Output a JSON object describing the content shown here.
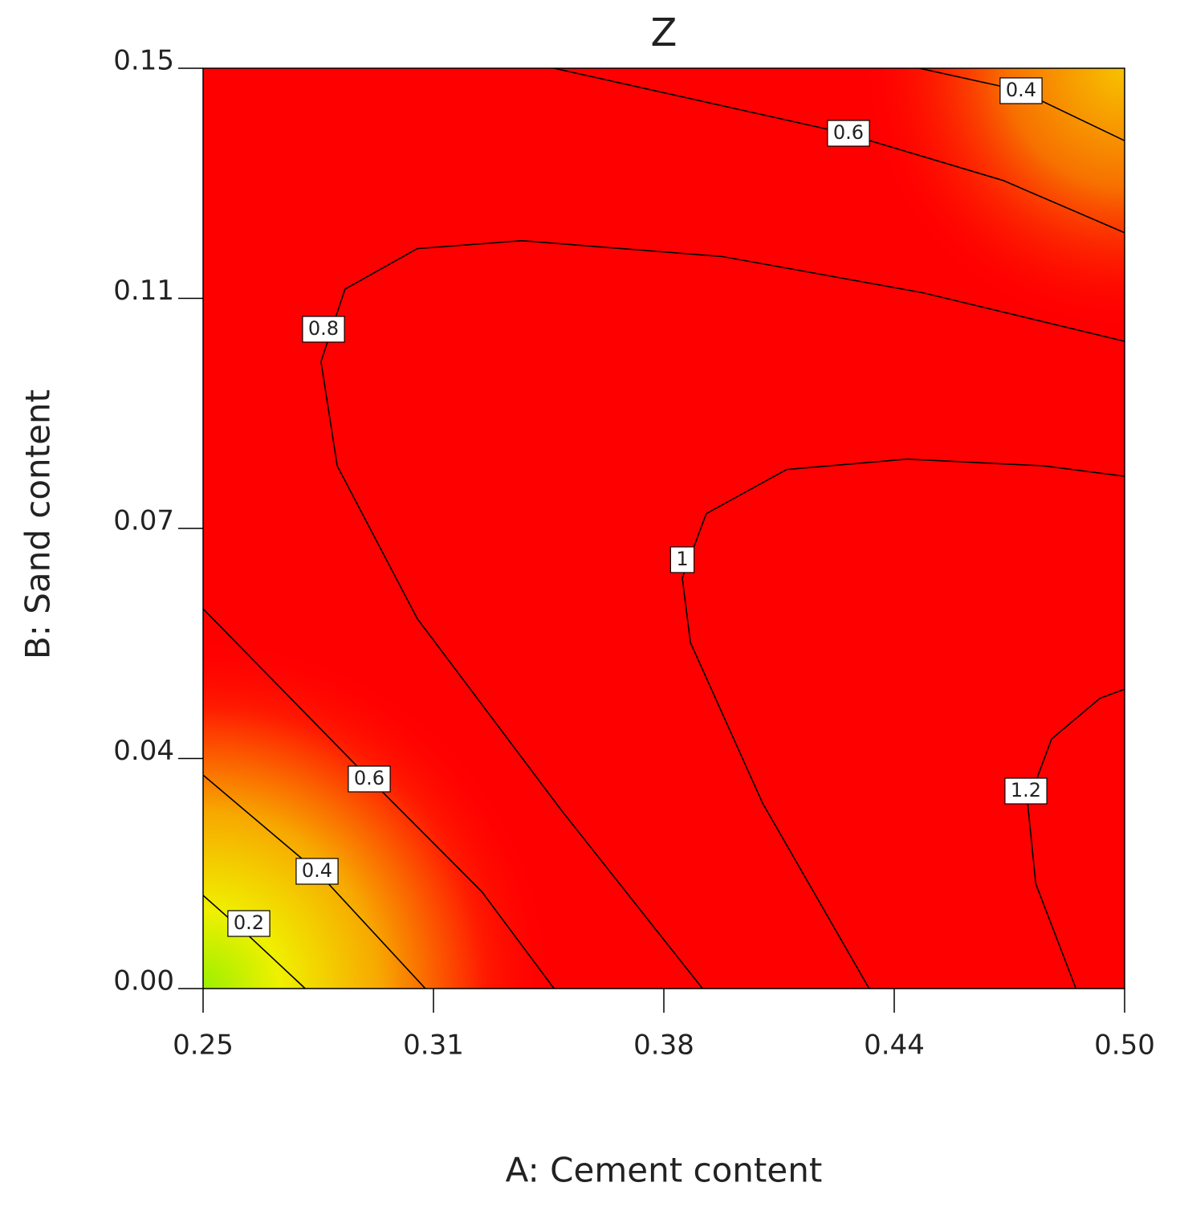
{
  "chart_data": {
    "type": "contour",
    "title": "Z",
    "x_label": "A: Cement content",
    "y_label": "B: Sand content",
    "xlim": [
      0.25,
      0.5
    ],
    "ylim": [
      0,
      0.15
    ],
    "xticks": [
      0.25,
      {
        "value": 0.3125,
        "label": "0.31"
      },
      {
        "value": 0.375,
        "label": "0.38"
      },
      {
        "value": 0.4375,
        "label": "0.44"
      },
      {
        "value": 0.5,
        "label": "0.50"
      }
    ],
    "yticks": [
      {
        "value": 0,
        "label": "0.00"
      },
      {
        "value": 0.0375,
        "label": "0.04"
      },
      {
        "value": 0.075,
        "label": "0.07"
      },
      {
        "value": 0.1125,
        "label": "0.11"
      },
      0.15
    ],
    "line_color": "#000000",
    "contours": [
      {
        "level": 0.2,
        "x": [
          0.25,
          0.2624,
          0.2777
        ],
        "y": [
          0.0152,
          0.0086,
          0
        ]
      },
      {
        "level": 0.4,
        "x": [
          0.25,
          0.2809,
          0.3103
        ],
        "y": [
          0.0348,
          0.0191,
          0
        ]
      },
      {
        "level": 0.6,
        "x": [
          0.25,
          0.2951,
          0.3256,
          0.3452
        ],
        "y": [
          0.0619,
          0.0342,
          0.0158,
          0
        ]
      },
      {
        "level": 0.8,
        "x": [
          0.3855,
          0.3474,
          0.3081,
          0.2864,
          0.282,
          0.2885,
          0.3081,
          0.3365,
          0.3909,
          0.4453,
          0.5
        ],
        "y": [
          0,
          0.0289,
          0.0603,
          0.0852,
          0.1022,
          0.114,
          0.1206,
          0.1219,
          0.1193,
          0.1134,
          0.1055
        ]
      },
      {
        "level": 1,
        "x": [
          0.4307,
          0.4018,
          0.3822,
          0.38,
          0.3865,
          0.4083,
          0.441,
          0.478,
          0.5
        ],
        "y": [
          0,
          0.0302,
          0.0564,
          0.0669,
          0.0774,
          0.0846,
          0.0863,
          0.0852,
          0.0835
        ]
      },
      {
        "level": 1.2,
        "x": [
          0.4868,
          0.4759,
          0.4737,
          0.4802,
          0.4933,
          0.5
        ],
        "y": [
          0,
          0.0171,
          0.0302,
          0.0407,
          0.0473,
          0.0488
        ]
      },
      {
        "level": 0.6,
        "x": [
          0.3452,
          0.4236,
          0.4671,
          0.5
        ],
        "y": [
          0.15,
          0.1395,
          0.1317,
          0.1232
        ]
      },
      {
        "level": 0.4,
        "x": [
          0.4443,
          0.4715,
          0.5
        ],
        "y": [
          0.15,
          0.1464,
          0.1382
        ]
      }
    ]
  }
}
